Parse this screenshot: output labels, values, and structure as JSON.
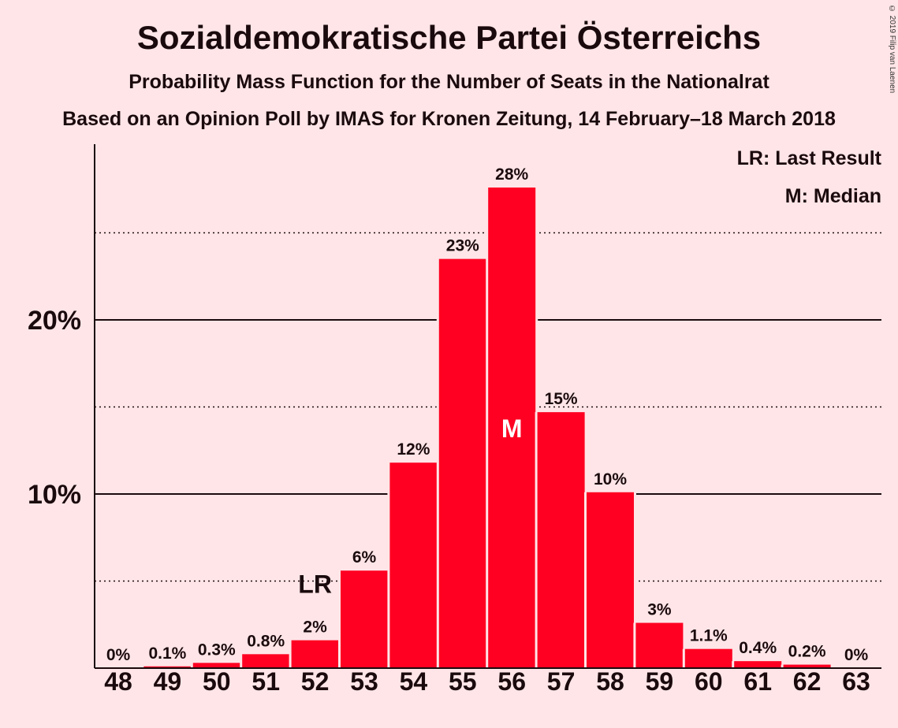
{
  "header": {
    "title": "Sozialdemokratische Partei Österreichs",
    "subtitle": "Probability Mass Function for the Number of Seats in the Nationalrat",
    "source": "Based on an Opinion Poll by IMAS for Kronen Zeitung, 14 February–18 March 2018",
    "copyright": "© 2019 Filip van Laenen"
  },
  "legend": {
    "last_result": "LR: Last Result",
    "median": "M: Median"
  },
  "colors": {
    "background": "#FFE5E7",
    "bar": "#FF0022",
    "text": "#1a0a0e"
  },
  "chart_data": {
    "type": "bar",
    "title": "Sozialdemokratische Partei Österreichs",
    "categories": [
      "48",
      "49",
      "50",
      "51",
      "52",
      "53",
      "54",
      "55",
      "56",
      "57",
      "58",
      "59",
      "60",
      "61",
      "62",
      "63"
    ],
    "values": [
      0,
      0.1,
      0.3,
      0.8,
      1.6,
      5.6,
      11.8,
      23.5,
      27.6,
      14.7,
      10.1,
      2.6,
      1.1,
      0.4,
      0.2,
      0
    ],
    "data_labels": [
      "0%",
      "0.1%",
      "0.3%",
      "0.8%",
      "2%",
      "6%",
      "12%",
      "23%",
      "28%",
      "15%",
      "10%",
      "3%",
      "1.1%",
      "0.4%",
      "0.2%",
      "0%"
    ],
    "ylim": [
      0,
      30
    ],
    "yticks": [
      {
        "value": 10,
        "label": "10%"
      },
      {
        "value": 20,
        "label": "20%"
      }
    ],
    "solid_gridlines": [
      10,
      20
    ],
    "dotted_gridlines": [
      5,
      15,
      25
    ],
    "markers": [
      {
        "category": "52",
        "label": "LR"
      },
      {
        "category": "56",
        "label": "M"
      }
    ],
    "legend_position": "top-right"
  }
}
